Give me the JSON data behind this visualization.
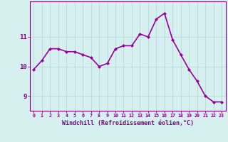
{
  "hours": [
    0,
    1,
    2,
    3,
    4,
    5,
    6,
    7,
    8,
    9,
    10,
    11,
    12,
    13,
    14,
    15,
    16,
    17,
    18,
    19,
    20,
    21,
    22,
    23
  ],
  "values": [
    9.9,
    10.2,
    10.6,
    10.6,
    10.5,
    10.5,
    10.4,
    10.3,
    10.0,
    10.1,
    10.6,
    10.7,
    10.7,
    11.1,
    11.0,
    11.6,
    11.8,
    10.9,
    10.4,
    9.9,
    9.5,
    9.0,
    8.8,
    8.8
  ],
  "line_color": "#990099",
  "marker": "D",
  "marker_size": 2,
  "bg_color": "#d6f0f0",
  "grid_color": "#b8dada",
  "axis_color": "#800080",
  "tick_color": "#800080",
  "xlabel": "Windchill (Refroidissement éolien,°C)",
  "ylabel": "",
  "ylim": [
    8.5,
    12.2
  ],
  "yticks": [
    9,
    10,
    11
  ],
  "title": "",
  "line_width": 1.2,
  "font_color": "#800080"
}
